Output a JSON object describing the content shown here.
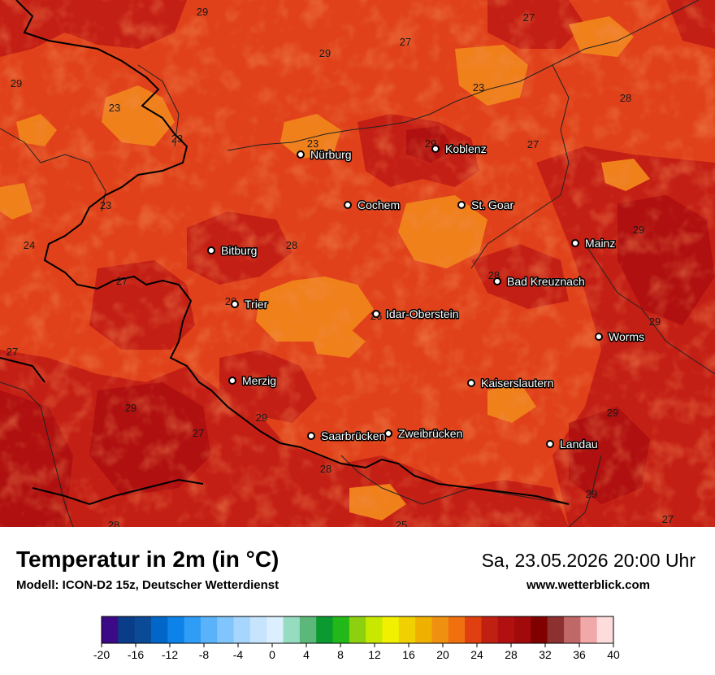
{
  "title": "Temperatur in 2m (in °C)",
  "subtitle": "Modell: ICON-D2 15z, Deutscher Wetterdienst",
  "datetime": "Sa, 23.05.2026 20:00 Uhr",
  "website": "www.wetterblick.com",
  "colors": {
    "base": "#e0411a",
    "warm": "#c41f15",
    "hot": "#b01010",
    "mild": "#f0801a"
  },
  "cities": [
    {
      "name": "Nürburg"
    },
    {
      "name": "Koblenz"
    },
    {
      "name": "Cochem"
    },
    {
      "name": "St. Goar"
    },
    {
      "name": "Mainz"
    },
    {
      "name": "Bitburg"
    },
    {
      "name": "Bad Kreuznach"
    },
    {
      "name": "Trier"
    },
    {
      "name": "Idar-Oberstein"
    },
    {
      "name": "Worms"
    },
    {
      "name": "Merzig"
    },
    {
      "name": "Kaiserslautern"
    },
    {
      "name": "Saarbrücken"
    },
    {
      "name": "Zweibrücken"
    },
    {
      "name": "Landau"
    }
  ],
  "temps": [
    "29",
    "27",
    "27",
    "29",
    "29",
    "23",
    "28",
    "23",
    "23",
    "29",
    "27",
    "23",
    "23",
    "24",
    "28",
    "29",
    "27",
    "28",
    "26",
    "29",
    "27",
    "29",
    "29",
    "27",
    "29",
    "28",
    "28",
    "25",
    "27",
    "28",
    "29"
  ],
  "colorbar": {
    "min": -20,
    "max": 40,
    "ticks": [
      "-20",
      "-16",
      "-12",
      "-8",
      "-4",
      "0",
      "4",
      "8",
      "12",
      "16",
      "20",
      "24",
      "28",
      "32",
      "36",
      "40"
    ],
    "colors": [
      "#3d0a87",
      "#0a3d87",
      "#0a4a96",
      "#0066c8",
      "#0d82e8",
      "#2f9cf5",
      "#5ab3fa",
      "#80c5fc",
      "#a6d6fd",
      "#c6e4fe",
      "#dcefff",
      "#96dcc0",
      "#5cb87a",
      "#0a9a30",
      "#22b818",
      "#8cd010",
      "#c8e800",
      "#f0f000",
      "#f0d000",
      "#f0b000",
      "#f09010",
      "#f07010",
      "#e04010",
      "#c02010",
      "#b01010",
      "#a00a0a",
      "#800000",
      "#8c3030",
      "#c06868",
      "#f0a8a8",
      "#ffdcdc"
    ]
  }
}
